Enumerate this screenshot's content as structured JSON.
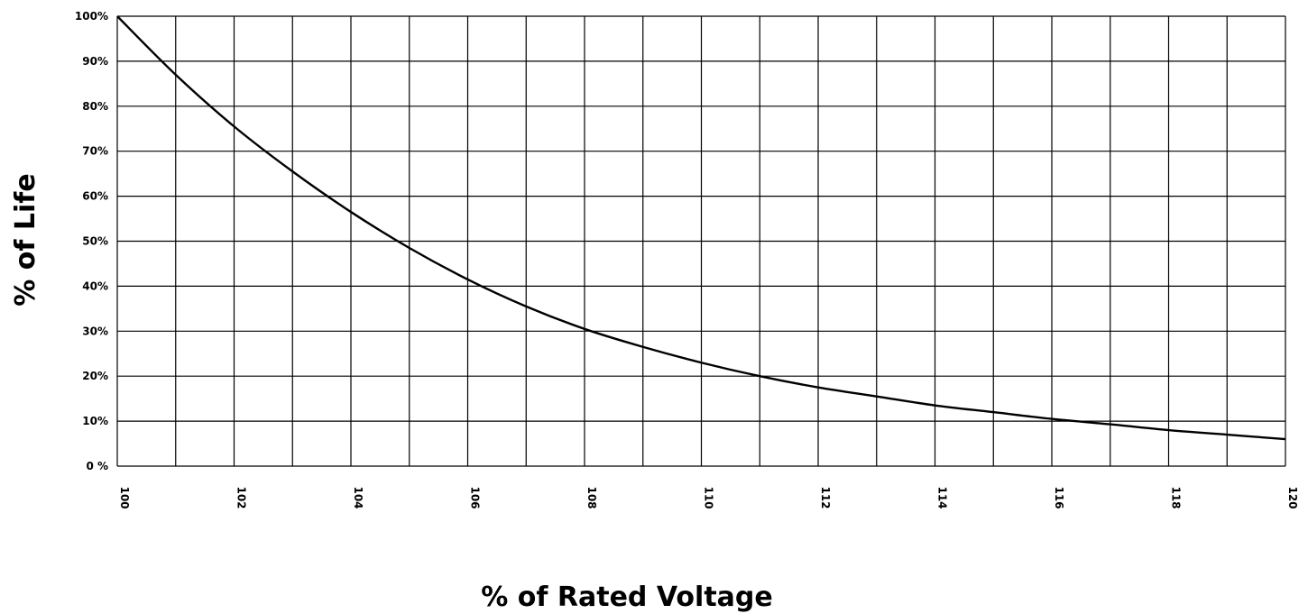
{
  "chart_data": {
    "type": "line",
    "title": "",
    "xlabel": "% of Rated Voltage",
    "ylabel": "% of Life",
    "xlim": [
      100,
      120
    ],
    "ylim": [
      0,
      100
    ],
    "grid": true,
    "x_ticks": [
      "100",
      "102",
      "104",
      "106",
      "108",
      "110",
      "112",
      "114",
      "116",
      "118",
      "120"
    ],
    "y_ticks": [
      "0 %",
      "10%",
      "20%",
      "30%",
      "40%",
      "50%",
      "60%",
      "70%",
      "80%",
      "90%",
      "100%"
    ],
    "series": [
      {
        "x": [
          100,
          101,
          102,
          103,
          104,
          105,
          106,
          107,
          108,
          109,
          110,
          111,
          112,
          113,
          114,
          115,
          116,
          117,
          118,
          119,
          120
        ],
        "y": [
          100,
          87,
          75.5,
          65.5,
          56.5,
          48.5,
          41.5,
          35.5,
          30.5,
          26.5,
          23,
          20,
          17.5,
          15.5,
          13.5,
          12,
          10.5,
          9.3,
          8,
          7,
          6
        ]
      }
    ]
  }
}
